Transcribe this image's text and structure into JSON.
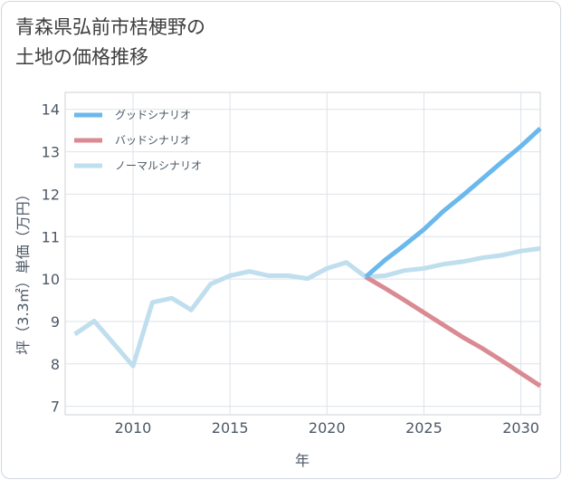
{
  "chart_data": {
    "type": "line",
    "title_line1": "青森県弘前市桔梗野の",
    "title_line2": "土地の価格推移",
    "xlabel": "年",
    "ylabel": "坪（3.3㎡）単価（万円）",
    "xlim": [
      2006.5,
      2031
    ],
    "ylim": [
      6.8,
      14.4
    ],
    "x_ticks": [
      2010,
      2015,
      2020,
      2025,
      2030
    ],
    "y_ticks": [
      7,
      8,
      9,
      10,
      11,
      12,
      13,
      14
    ],
    "grid": true,
    "legend_position": "top-left",
    "series": [
      {
        "name": "グッドシナリオ",
        "color": "#6ab8ec",
        "x": [
          2022,
          2023,
          2024,
          2025,
          2026,
          2027,
          2028,
          2029,
          2030,
          2031
        ],
        "values": [
          10.05,
          10.45,
          10.8,
          11.17,
          11.6,
          11.97,
          12.36,
          12.75,
          13.13,
          13.55
        ]
      },
      {
        "name": "バッドシナリオ",
        "color": "#da8a92",
        "x": [
          2022,
          2023,
          2024,
          2025,
          2026,
          2027,
          2028,
          2029,
          2030,
          2031
        ],
        "values": [
          10.05,
          9.78,
          9.5,
          9.21,
          8.92,
          8.63,
          8.37,
          8.08,
          7.78,
          7.48
        ]
      },
      {
        "name": "ノーマルシナリオ",
        "color": "#bfdeee",
        "x": [
          2007,
          2008,
          2009,
          2010,
          2011,
          2012,
          2013,
          2014,
          2015,
          2016,
          2017,
          2018,
          2019,
          2020,
          2021,
          2022,
          2023,
          2024,
          2025,
          2026,
          2027,
          2028,
          2029,
          2030,
          2031
        ],
        "values": [
          8.7,
          9.01,
          8.48,
          7.95,
          9.45,
          9.55,
          9.27,
          9.88,
          10.08,
          10.18,
          10.08,
          10.08,
          10.01,
          10.25,
          10.39,
          10.05,
          10.08,
          10.2,
          10.25,
          10.35,
          10.41,
          10.5,
          10.56,
          10.66,
          10.72
        ]
      }
    ]
  }
}
